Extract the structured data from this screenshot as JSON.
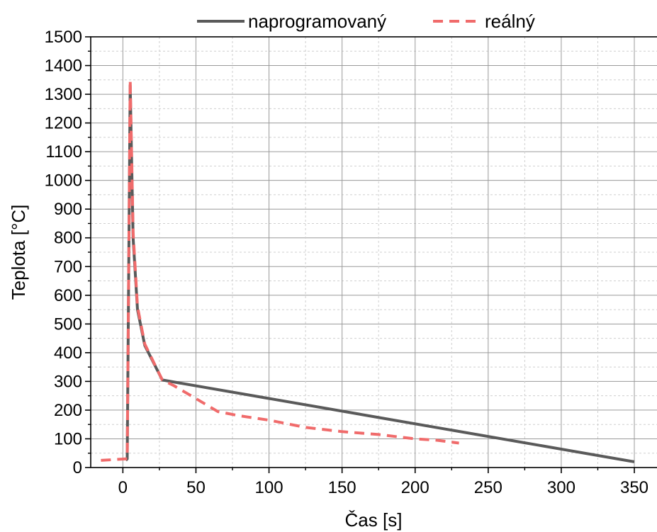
{
  "chart_data": {
    "type": "line",
    "xlabel": "Čas [s]",
    "ylabel": "Teplota [°C]",
    "xlim": [
      -22,
      366
    ],
    "ylim": [
      0,
      1500
    ],
    "x_ticks": [
      0,
      50,
      100,
      150,
      200,
      250,
      300,
      350
    ],
    "y_ticks": [
      0,
      100,
      200,
      300,
      400,
      500,
      600,
      700,
      800,
      900,
      1000,
      1100,
      1200,
      1300,
      1400,
      1500
    ],
    "grid": true,
    "legend_position": "top",
    "series": [
      {
        "name": "naprogramovaný",
        "color": "#5a5a5a",
        "style": "solid",
        "points": [
          {
            "x": 2,
            "y": 25
          },
          {
            "x": 3,
            "y": 30
          },
          {
            "x": 5,
            "y": 1330
          },
          {
            "x": 7,
            "y": 800
          },
          {
            "x": 10,
            "y": 550
          },
          {
            "x": 15,
            "y": 425
          },
          {
            "x": 27,
            "y": 305
          },
          {
            "x": 350,
            "y": 20
          }
        ]
      },
      {
        "name": "reálný",
        "color": "#f06b6b",
        "style": "dashed",
        "points": [
          {
            "x": -15,
            "y": 25
          },
          {
            "x": 2,
            "y": 30
          },
          {
            "x": 3,
            "y": 30
          },
          {
            "x": 5,
            "y": 1350
          },
          {
            "x": 7,
            "y": 820
          },
          {
            "x": 10,
            "y": 560
          },
          {
            "x": 15,
            "y": 430
          },
          {
            "x": 27,
            "y": 305
          },
          {
            "x": 35,
            "y": 285
          },
          {
            "x": 50,
            "y": 240
          },
          {
            "x": 65,
            "y": 195
          },
          {
            "x": 80,
            "y": 180
          },
          {
            "x": 100,
            "y": 165
          },
          {
            "x": 125,
            "y": 140
          },
          {
            "x": 150,
            "y": 125
          },
          {
            "x": 175,
            "y": 115
          },
          {
            "x": 200,
            "y": 100
          },
          {
            "x": 215,
            "y": 95
          },
          {
            "x": 230,
            "y": 85
          }
        ]
      }
    ]
  }
}
